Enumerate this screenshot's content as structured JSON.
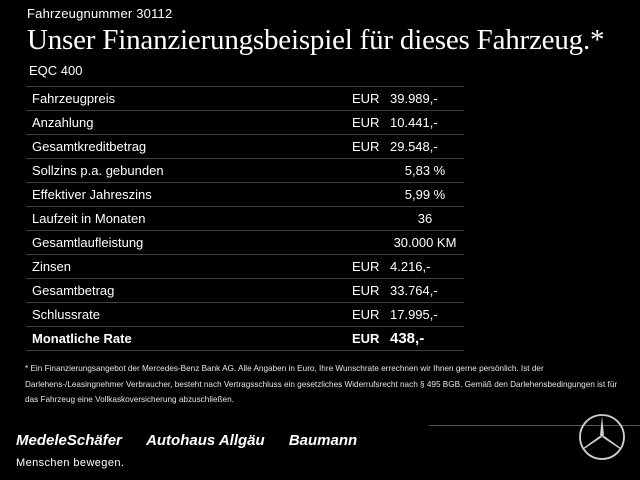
{
  "vehicle_number": "Fahrzeugnummer 30112",
  "headline": "Unser Finanzierungsbeispiel für dieses Fahrzeug.*",
  "model": "EQC 400",
  "rows": [
    {
      "label": "Fahrzeugpreis",
      "currency": "EUR",
      "value": "39.989,-"
    },
    {
      "label": "Anzahlung",
      "currency": "EUR",
      "value": "10.441,-"
    },
    {
      "label": "Gesamtkreditbetrag",
      "currency": "EUR",
      "value": "29.548,-"
    },
    {
      "label": "Sollzins p.a. gebunden",
      "currency": "",
      "value": "5,83 %"
    },
    {
      "label": "Effektiver Jahreszins",
      "currency": "",
      "value": "5,99 %"
    },
    {
      "label": "Laufzeit in Monaten",
      "currency": "",
      "value": "36"
    },
    {
      "label": "Gesamtlaufleistung",
      "currency": "",
      "value": "30.000 KM"
    },
    {
      "label": "Zinsen",
      "currency": "EUR",
      "value": "4.216,-"
    },
    {
      "label": "Gesamtbetrag",
      "currency": "EUR",
      "value": "33.764,-"
    },
    {
      "label": "Schlussrate",
      "currency": "EUR",
      "value": "17.995,-"
    },
    {
      "label": "Monatliche Rate",
      "currency": "EUR",
      "value": "438,-"
    }
  ],
  "footnote": "* Ein Finanzierungsangebot der Mercedes-Benz Bank AG. Alle Angaben in Euro, Ihre Wunschrate errechnen wir Ihnen gerne persönlich. Ist der Darlehens-/Leasingnehmer Verbraucher, besteht nach Vertragsschluss ein gesetzliches Widerrufsrecht nach § 495 BGB. Gemäß den Darlehensbedingungen ist für das Fahrzeug eine Vollkaskoversicherung abzuschließen.",
  "dealers": [
    "MedeleSchäfer",
    "Autohaus Allgäu",
    "Baumann"
  ],
  "slogan": "Menschen bewegen.",
  "logo_icon": "mercedes-star-icon"
}
